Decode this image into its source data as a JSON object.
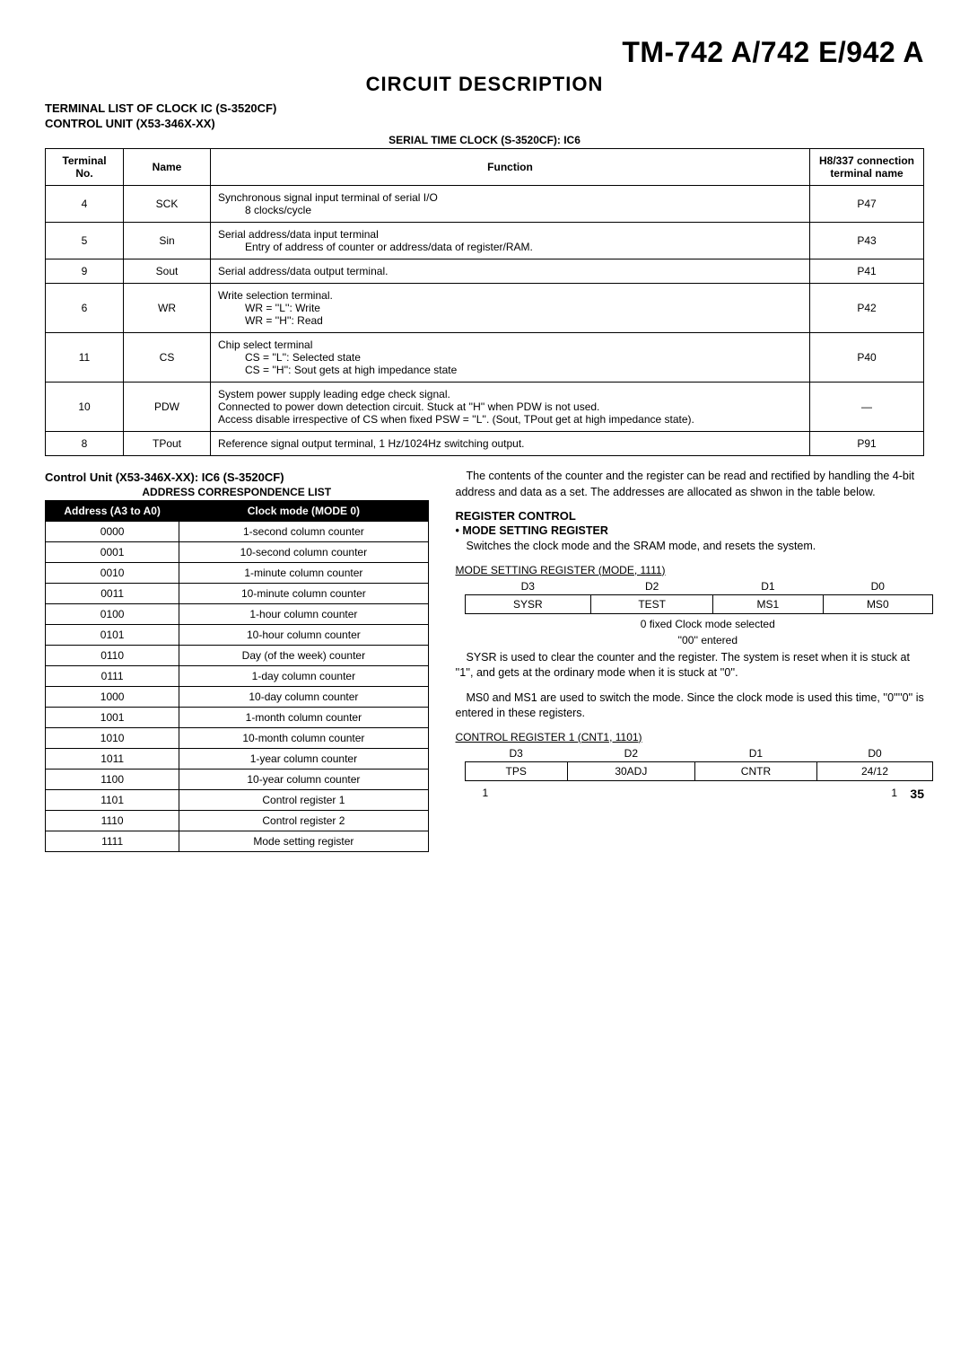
{
  "model": "TM-742 A/742 E/942 A",
  "section": "CIRCUIT DESCRIPTION",
  "heading1": "TERMINAL LIST OF CLOCK IC (S-3520CF)",
  "heading2": "CONTROL UNIT (X53-346X-XX)",
  "tableTitle": "SERIAL TIME CLOCK (S-3520CF): IC6",
  "terminalHeaders": [
    "Terminal No.",
    "Name",
    "Function",
    "H8/337 connection terminal name"
  ],
  "terminalRows": [
    {
      "no": "4",
      "name": "SCK",
      "func": "Synchronous signal input terminal of serial I/O",
      "funcSub": "8 clocks/cycle",
      "conn": "P47"
    },
    {
      "no": "5",
      "name": "Sin",
      "func": "Serial address/data input terminal",
      "funcSub": "Entry of address of counter or address/data of register/RAM.",
      "conn": "P43"
    },
    {
      "no": "9",
      "name": "Sout",
      "func": "Serial address/data output terminal.",
      "funcSub": "",
      "conn": "P41"
    },
    {
      "no": "6",
      "name": "WR",
      "func": "Write selection terminal.",
      "funcSub": "WR = ''L'': Write\nWR = ''H'': Read",
      "conn": "P42"
    },
    {
      "no": "11",
      "name": "CS",
      "func": "Chip select terminal",
      "funcSub": "CS = ''L'': Selected state\nCS = ''H'': Sout gets at high impedance state",
      "conn": "P40"
    },
    {
      "no": "10",
      "name": "PDW",
      "func": "System power supply leading edge check signal.\nConnected to power down detection circuit. Stuck at ''H'' when PDW is not used.\nAccess disable irrespective of CS when fixed PSW = ''L''. (Sout, TPout get at high impedance state).",
      "funcSub": "",
      "conn": "—"
    },
    {
      "no": "8",
      "name": "TPout",
      "func": "Reference signal output terminal, 1 Hz/1024Hz switching output.",
      "funcSub": "",
      "conn": "P91"
    }
  ],
  "addrTitle1": "Control Unit (X53-346X-XX): IC6 (S-3520CF)",
  "addrTitle2": "ADDRESS CORRESPONDENCE LIST",
  "addrHeaders": [
    "Address (A3 to A0)",
    "Clock mode (MODE 0)"
  ],
  "addrRows": [
    [
      "0000",
      "1-second column counter"
    ],
    [
      "0001",
      "10-second column counter"
    ],
    [
      "0010",
      "1-minute column counter"
    ],
    [
      "0011",
      "10-minute column counter"
    ],
    [
      "0100",
      "1-hour column counter"
    ],
    [
      "0101",
      "10-hour column counter"
    ],
    [
      "0110",
      "Day (of the week) counter"
    ],
    [
      "0111",
      "1-day column counter"
    ],
    [
      "1000",
      "10-day column counter"
    ],
    [
      "1001",
      "1-month column counter"
    ],
    [
      "1010",
      "10-month column counter"
    ],
    [
      "1011",
      "1-year column counter"
    ],
    [
      "1100",
      "10-year column counter"
    ],
    [
      "1101",
      "Control register 1"
    ],
    [
      "1110",
      "Control register 2"
    ],
    [
      "1111",
      "Mode setting register"
    ]
  ],
  "para1": "The contents of the counter and the register can be read and rectified by handling the 4-bit address and data as a set. The addresses are allocated as shwon in the table below.",
  "regHeading": "REGISTER CONTROL",
  "regSub": "• MODE SETTING REGISTER",
  "para2": "Switches the clock mode and the SRAM mode, and resets the system.",
  "modeCaption": "MODE SETTING REGISTER (MODE, 1111)",
  "modeHeaders": [
    "D3",
    "D2",
    "D1",
    "D0"
  ],
  "modeCells": [
    "SYSR",
    "TEST",
    "MS1",
    "MS0"
  ],
  "modeNote1": "0 fixed   Clock mode selected",
  "modeNote2": "''00'' entered",
  "para3": "SYSR is used to clear the counter and the register. The system is reset when it is stuck at ''1'', and gets at the ordinary mode when it is stuck at ''0''.",
  "para4": "MS0 and MS1 are used to switch the mode. Since the clock mode is used this time, ''0''''0'' is entered in these registers.",
  "cntCaption": "CONTROL REGISTER 1 (CNT1, 1101)",
  "cntHeaders": [
    "D3",
    "D2",
    "D1",
    "D0"
  ],
  "cntCells": [
    "TPS",
    "30ADJ",
    "CNTR",
    "24/12"
  ],
  "cntFoot": [
    "1",
    "",
    "",
    "1"
  ],
  "pageNum": "35"
}
